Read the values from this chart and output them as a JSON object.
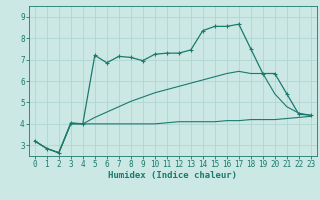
{
  "background_color": "#cce8e4",
  "grid_color": "#b0d5d0",
  "line_color": "#1a7a6e",
  "xlabel": "Humidex (Indice chaleur)",
  "xlim": [
    -0.5,
    23.5
  ],
  "ylim": [
    2.5,
    9.5
  ],
  "yticks": [
    3,
    4,
    5,
    6,
    7,
    8,
    9
  ],
  "xticks": [
    0,
    1,
    2,
    3,
    4,
    5,
    6,
    7,
    8,
    9,
    10,
    11,
    12,
    13,
    14,
    15,
    16,
    17,
    18,
    19,
    20,
    21,
    22,
    23
  ],
  "series1_x": [
    0,
    1,
    2,
    3,
    4,
    5,
    6,
    7,
    8,
    9,
    10,
    11,
    12,
    13,
    14,
    15,
    16,
    17,
    18,
    19,
    20,
    21,
    22,
    23
  ],
  "series1_y": [
    3.2,
    2.85,
    2.65,
    4.05,
    4.0,
    7.2,
    6.85,
    7.15,
    7.1,
    6.95,
    7.25,
    7.3,
    7.3,
    7.45,
    8.35,
    8.55,
    8.55,
    8.65,
    7.5,
    6.35,
    6.35,
    5.4,
    4.45,
    4.4
  ],
  "series2_x": [
    0,
    1,
    2,
    3,
    4,
    5,
    6,
    7,
    8,
    9,
    10,
    11,
    12,
    13,
    14,
    15,
    16,
    17,
    18,
    19,
    20,
    21,
    22,
    23
  ],
  "series2_y": [
    3.2,
    2.85,
    2.65,
    4.0,
    4.0,
    4.0,
    4.0,
    4.0,
    4.0,
    4.0,
    4.0,
    4.05,
    4.1,
    4.1,
    4.1,
    4.1,
    4.15,
    4.15,
    4.2,
    4.2,
    4.2,
    4.25,
    4.3,
    4.35
  ],
  "series3_x": [
    0,
    1,
    2,
    3,
    4,
    5,
    6,
    7,
    8,
    9,
    10,
    11,
    12,
    13,
    14,
    15,
    16,
    17,
    18,
    19,
    20,
    21,
    22,
    23
  ],
  "series3_y": [
    3.2,
    2.85,
    2.65,
    4.0,
    4.0,
    4.3,
    4.55,
    4.8,
    5.05,
    5.25,
    5.45,
    5.6,
    5.75,
    5.9,
    6.05,
    6.2,
    6.35,
    6.45,
    6.35,
    6.35,
    5.4,
    4.8,
    4.5,
    4.4
  ]
}
